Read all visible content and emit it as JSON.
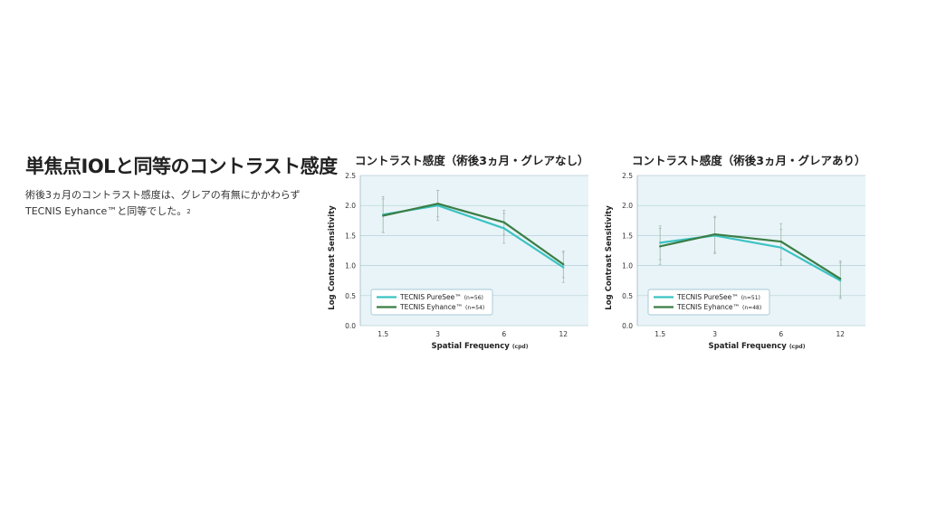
{
  "headline": "単焦点IOLと同等のコントラスト感度",
  "lede": {
    "line1": "術後3ヵ月のコントラスト感度は、グレアの有無にかかわらず",
    "line2": "TECNIS Eyhance™と同等でした。",
    "ref": "2"
  },
  "chart_data": [
    {
      "type": "line",
      "title": "コントラスト感度（術後3ヵ月・グレアなし）",
      "xlabel": "Spatial Frequency",
      "xunit": "(cpd)",
      "ylabel": "Log Contrast Sensitivity",
      "categories": [
        "1.5",
        "3",
        "6",
        "12"
      ],
      "ylim": [
        0,
        2.5
      ],
      "yticks": [
        "0.0",
        "0.5",
        "1.0",
        "1.5",
        "2.0",
        "2.5"
      ],
      "grid": true,
      "legend_position": "bottom-left",
      "series": [
        {
          "name": "TECNIS PureSee™",
          "n": "(n=56)",
          "color": "#3cc3c3",
          "values": [
            1.85,
            2.0,
            1.62,
            0.97
          ],
          "err": [
            0.3,
            0.25,
            0.25,
            0.25
          ]
        },
        {
          "name": "TECNIS Eyhance™",
          "n": "(n=54)",
          "color": "#3a7d44",
          "values": [
            1.83,
            2.03,
            1.72,
            1.02
          ],
          "err": [
            0.28,
            0.22,
            0.2,
            0.22
          ]
        }
      ]
    },
    {
      "type": "line",
      "title": "コントラスト感度（術後3ヵ月・グレアあり）",
      "xlabel": "Spatial Frequency",
      "xunit": "(cpd)",
      "ylabel": "Log Contrast Sensitivity",
      "categories": [
        "1.5",
        "3",
        "6",
        "12"
      ],
      "ylim": [
        0,
        2.5
      ],
      "yticks": [
        "0.0",
        "0.5",
        "1.0",
        "1.5",
        "2.0",
        "2.5"
      ],
      "grid": true,
      "legend_position": "bottom-left",
      "series": [
        {
          "name": "TECNIS PureSee™",
          "n": "(n=51)",
          "color": "#3cc3c3",
          "values": [
            1.38,
            1.5,
            1.3,
            0.75
          ],
          "err": [
            0.28,
            0.3,
            0.3,
            0.3
          ]
        },
        {
          "name": "TECNIS Eyhance™",
          "n": "(n=48)",
          "color": "#3a7d44",
          "values": [
            1.32,
            1.52,
            1.4,
            0.78
          ],
          "err": [
            0.3,
            0.3,
            0.3,
            0.3
          ]
        }
      ]
    }
  ]
}
